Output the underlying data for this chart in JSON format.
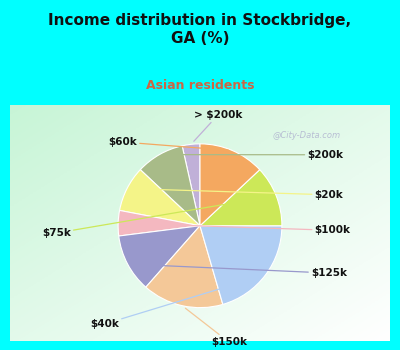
{
  "title": "Income distribution in Stockbridge,\nGA (%)",
  "subtitle": "Asian residents",
  "bg_color": "#00FFFF",
  "chart_bg_color": "#d8f0e0",
  "labels": [
    "> $200k",
    "$200k",
    "$20k",
    "$100k",
    "$125k",
    "$150k",
    "$40k",
    "$75k",
    "$60k"
  ],
  "values": [
    3.5,
    9.5,
    9.0,
    5.0,
    11.5,
    16.0,
    20.5,
    12.0,
    13.0
  ],
  "colors": [
    "#c0b0d8",
    "#a8bb88",
    "#f4f488",
    "#f4b8c0",
    "#9898cc",
    "#f4c898",
    "#b0cef4",
    "#cce858",
    "#f4a860"
  ],
  "label_positions": [
    [
      0.2,
      1.22,
      "center"
    ],
    [
      1.18,
      0.78,
      "left"
    ],
    [
      1.26,
      0.34,
      "left"
    ],
    [
      1.26,
      -0.05,
      "left"
    ],
    [
      1.22,
      -0.52,
      "left"
    ],
    [
      0.32,
      -1.28,
      "center"
    ],
    [
      -1.05,
      -1.08,
      "center"
    ],
    [
      -1.42,
      -0.08,
      "right"
    ],
    [
      -0.85,
      0.92,
      "center"
    ]
  ],
  "startangle": 90,
  "title_fontsize": 11,
  "subtitle_fontsize": 9,
  "subtitle_color": "#cc6644",
  "watermark": "@City-Data.com",
  "label_fontsize": 7.5
}
